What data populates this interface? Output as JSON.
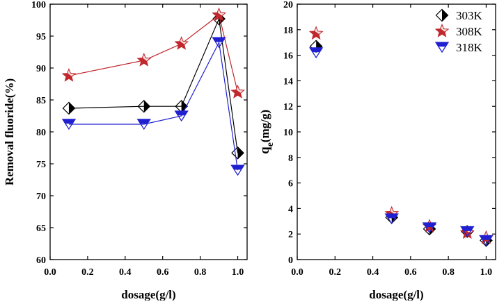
{
  "chart_data": [
    {
      "type": "line",
      "xlabel": "dosage(g/l)",
      "ylabel": "Removal fluoride(%)",
      "xlim": [
        0.0,
        1.05
      ],
      "ylim": [
        60,
        100
      ],
      "x_ticks": [
        "0.0",
        "0.2",
        "0.4",
        "0.6",
        "0.8",
        "1.0"
      ],
      "y_ticks": [
        "60",
        "65",
        "70",
        "75",
        "80",
        "85",
        "90",
        "95",
        "100"
      ],
      "x": [
        0.1,
        0.5,
        0.7,
        0.9,
        1.0
      ],
      "series": [
        {
          "name": "303K",
          "marker": "half-filled-diamond",
          "color": "#000000",
          "values": [
            83.7,
            84.0,
            84.0,
            97.7,
            76.7
          ]
        },
        {
          "name": "308K",
          "marker": "star",
          "color": "#c0282d",
          "values": [
            88.8,
            91.2,
            93.8,
            98.3,
            86.2
          ]
        },
        {
          "name": "318K",
          "marker": "half-filled-triangle-down",
          "color": "#2020d0",
          "values": [
            81.2,
            81.2,
            82.5,
            94.0,
            74.0
          ]
        }
      ]
    },
    {
      "type": "scatter",
      "xlabel": "dosage(g/l)",
      "ylabel_main": "q",
      "ylabel_sub": "e",
      "ylabel_unit": "(mg/g)",
      "xlim": [
        0.0,
        1.05
      ],
      "ylim": [
        0,
        20
      ],
      "x_ticks": [
        "0.0",
        "0.2",
        "0.4",
        "0.6",
        "0.8",
        "1.0"
      ],
      "y_ticks": [
        "0",
        "2",
        "4",
        "6",
        "8",
        "10",
        "12",
        "14",
        "16",
        "18",
        "20"
      ],
      "x": [
        0.1,
        0.5,
        0.7,
        0.9,
        1.0
      ],
      "legend_position": "top-right",
      "series": [
        {
          "name": "303K",
          "marker": "half-filled-diamond",
          "color": "#000000",
          "values": [
            16.7,
            3.3,
            2.4,
            2.2,
            1.5
          ]
        },
        {
          "name": "308K",
          "marker": "star",
          "color": "#c0282d",
          "values": [
            17.7,
            3.6,
            2.6,
            2.1,
            1.7
          ]
        },
        {
          "name": "318K",
          "marker": "half-filled-triangle-down",
          "color": "#2020d0",
          "values": [
            16.2,
            3.2,
            2.5,
            2.2,
            1.5
          ]
        }
      ]
    }
  ]
}
